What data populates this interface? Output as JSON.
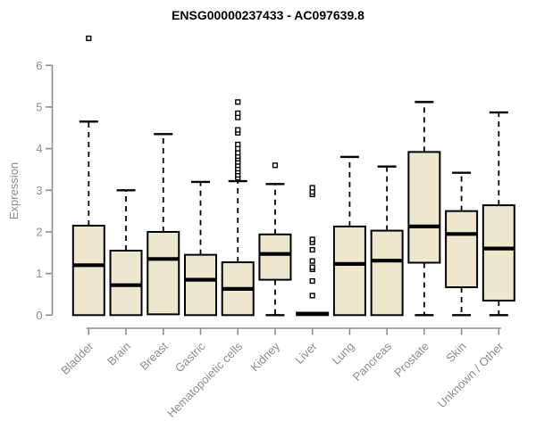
{
  "chart_data": {
    "type": "boxplot",
    "title": "ENSG00000237433 - AC097639.8",
    "ylabel": "Expression",
    "xlabel": "",
    "ylim": [
      0,
      6
    ],
    "yticks": [
      0,
      1,
      2,
      3,
      4,
      5,
      6
    ],
    "grid": false,
    "legend": "none",
    "colors": {
      "box_fill": "#ede8cd",
      "box_stroke": "#000000",
      "median": "#000000",
      "whisker": "#000000",
      "outlier": "#000000",
      "axis": "#8c8c8c",
      "title": "#000000"
    },
    "categories": [
      "Bladder",
      "Brain",
      "Breast",
      "Gastric",
      "Hematopoietic cells",
      "Kidney",
      "Liver",
      "Lung",
      "Pancreas",
      "Prostate",
      "Skin",
      "Unknown / Other"
    ],
    "boxes": [
      {
        "category": "Bladder",
        "whisker_low": 0,
        "q1": 0,
        "median": 1.2,
        "q3": 2.15,
        "whisker_high": 4.65,
        "outliers": [
          6.65
        ]
      },
      {
        "category": "Brain",
        "whisker_low": 0,
        "q1": 0,
        "median": 0.72,
        "q3": 1.55,
        "whisker_high": 3.0,
        "outliers": []
      },
      {
        "category": "Breast",
        "whisker_low": 0,
        "q1": 0.02,
        "median": 1.35,
        "q3": 2.0,
        "whisker_high": 4.35,
        "outliers": []
      },
      {
        "category": "Gastric",
        "whisker_low": 0,
        "q1": 0,
        "median": 0.85,
        "q3": 1.45,
        "whisker_high": 3.2,
        "outliers": []
      },
      {
        "category": "Hematopoietic cells",
        "whisker_low": 0,
        "q1": 0,
        "median": 0.63,
        "q3": 1.27,
        "whisker_high": 3.22,
        "outliers": [
          3.3,
          3.37,
          3.45,
          3.52,
          3.6,
          3.68,
          3.76,
          3.82,
          3.9,
          4.0,
          4.1,
          4.38,
          4.45,
          4.75,
          4.85,
          5.12
        ]
      },
      {
        "category": "Kidney",
        "whisker_low": 0,
        "q1": 0.85,
        "median": 1.47,
        "q3": 1.94,
        "whisker_high": 3.15,
        "outliers": [
          3.6
        ]
      },
      {
        "category": "Liver",
        "whisker_low": 0,
        "q1": 0,
        "median": 0.03,
        "q3": 0.06,
        "whisker_high": 0.06,
        "outliers": [
          0.47,
          0.82,
          1.1,
          1.15,
          1.3,
          1.57,
          1.75,
          1.82,
          2.9,
          2.96,
          3.06
        ]
      },
      {
        "category": "Lung",
        "whisker_low": 0,
        "q1": 0,
        "median": 1.23,
        "q3": 2.13,
        "whisker_high": 3.8,
        "outliers": []
      },
      {
        "category": "Pancreas",
        "whisker_low": 0,
        "q1": 0,
        "median": 1.31,
        "q3": 2.03,
        "whisker_high": 3.57,
        "outliers": []
      },
      {
        "category": "Prostate",
        "whisker_low": 0,
        "q1": 1.26,
        "median": 2.13,
        "q3": 3.92,
        "whisker_high": 5.12,
        "outliers": []
      },
      {
        "category": "Skin",
        "whisker_low": 0,
        "q1": 0.67,
        "median": 1.95,
        "q3": 2.5,
        "whisker_high": 3.42,
        "outliers": []
      },
      {
        "category": "Unknown / Other",
        "whisker_low": 0,
        "q1": 0.35,
        "median": 1.6,
        "q3": 2.64,
        "whisker_high": 4.87,
        "outliers": []
      }
    ]
  }
}
